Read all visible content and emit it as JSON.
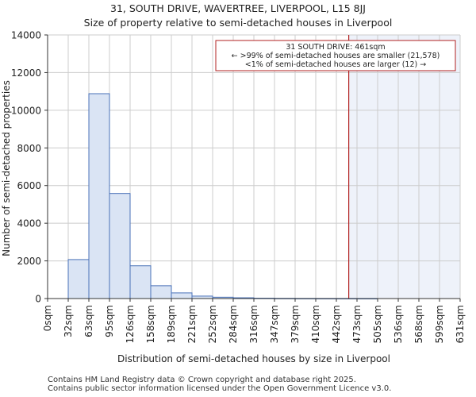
{
  "chart_data": {
    "type": "bar",
    "title": "31, SOUTH DRIVE, WAVERTREE, LIVERPOOL, L15 8JJ",
    "subtitle": "Size of property relative to semi-detached houses in Liverpool",
    "xlabel": "Distribution of semi-detached houses by size in Liverpool",
    "ylabel": "Number of semi-detached properties",
    "x_ticks": [
      "0sqm",
      "32sqm",
      "63sqm",
      "95sqm",
      "126sqm",
      "158sqm",
      "189sqm",
      "221sqm",
      "252sqm",
      "284sqm",
      "316sqm",
      "347sqm",
      "379sqm",
      "410sqm",
      "442sqm",
      "473sqm",
      "505sqm",
      "536sqm",
      "568sqm",
      "599sqm",
      "631sqm"
    ],
    "y_ticks": [
      0,
      2000,
      4000,
      6000,
      8000,
      10000,
      12000,
      14000
    ],
    "ylim": [
      0,
      14000
    ],
    "values": [
      0,
      2070,
      10880,
      5580,
      1740,
      680,
      300,
      130,
      70,
      40,
      20,
      10,
      5,
      3,
      2,
      1,
      0,
      0,
      0,
      0
    ],
    "property_marker": {
      "value_sqm": 461,
      "bin_index_position": 14.6
    },
    "annotation": {
      "line1": "31 SOUTH DRIVE: 461sqm",
      "line2": "← >99% of semi-detached houses are smaller (21,578)",
      "line3": "<1% of semi-detached houses are larger (12) →"
    },
    "colors": {
      "bar_fill": "#dae4f4",
      "bar_stroke": "#4a72b8",
      "marker": "#b22222",
      "shade": "#eef2fa",
      "grid": "#cccccc"
    }
  },
  "footer": {
    "line1": "Contains HM Land Registry data © Crown copyright and database right 2025.",
    "line2": "Contains public sector information licensed under the Open Government Licence v3.0."
  }
}
